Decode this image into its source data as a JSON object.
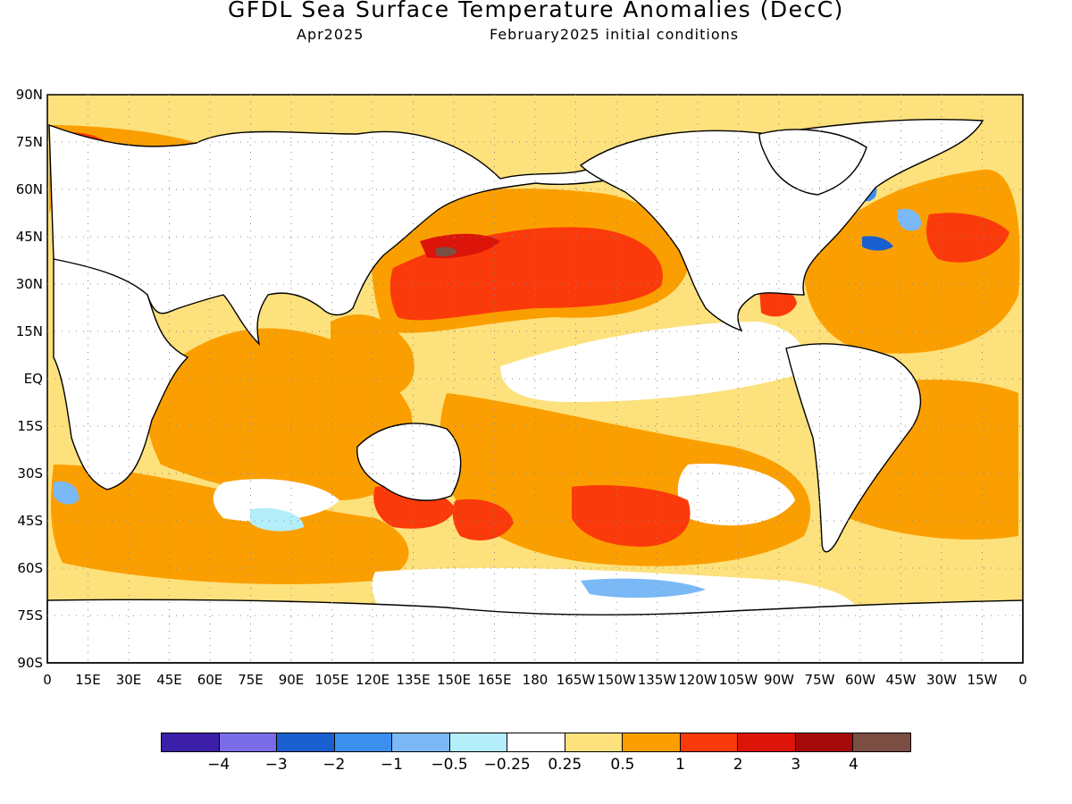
{
  "header": {
    "title": "GFDL Sea Surface Temperature Anomalies (DecC)",
    "valid_month": "Apr2025",
    "init_label": "February2025 initial conditions"
  },
  "map": {
    "lat_labels": [
      "90N",
      "75N",
      "60N",
      "45N",
      "30N",
      "15N",
      "EQ",
      "15S",
      "30S",
      "45S",
      "60S",
      "75S",
      "90S"
    ],
    "lon_labels": [
      "0",
      "15E",
      "30E",
      "45E",
      "60E",
      "75E",
      "90E",
      "105E",
      "120E",
      "135E",
      "150E",
      "165E",
      "180",
      "165W",
      "150W",
      "135W",
      "120W",
      "105W",
      "90W",
      "75W",
      "60W",
      "45W",
      "30W",
      "15W",
      "0"
    ],
    "ocean_base_color": "#fde17c",
    "land_color": "#ffffff",
    "coast_color": "#000000"
  },
  "colorbar": {
    "colors": [
      "#3b1fa8",
      "#7a6be8",
      "#1a5fcf",
      "#3a8fef",
      "#7ab9f6",
      "#b4eefb",
      "#ffffff",
      "#fde17c",
      "#fb9f00",
      "#fb3a0b",
      "#dc140a",
      "#a50a0a",
      "#7a4e42"
    ],
    "labels": [
      "−4",
      "−3",
      "−2",
      "−1",
      "−0.5",
      "−0.25",
      "0.25",
      "0.5",
      "1",
      "2",
      "3",
      "4"
    ]
  }
}
